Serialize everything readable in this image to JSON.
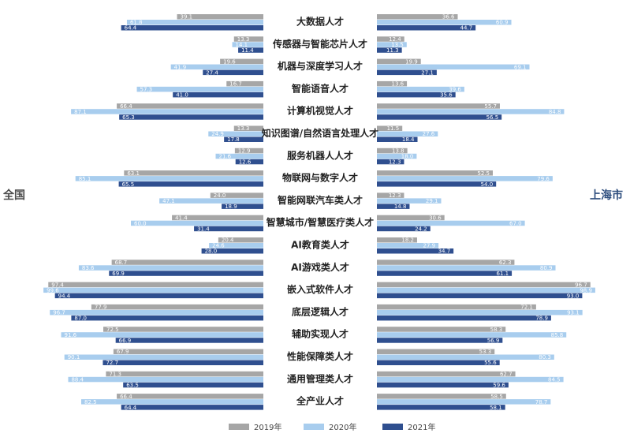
{
  "chart_data": {
    "type": "bar",
    "left_label": "全国",
    "right_label": "上海市",
    "categories": [
      "大数据人才",
      "传感器与智能芯片人才",
      "机器与深度学习人才",
      "智能语音人才",
      "计算机视觉人才",
      "知识图谱/自然语言处理人才",
      "服务机器人人才",
      "物联网与数字人才",
      "智能网联汽车类人才",
      "智慧城市/智慧医疗类人才",
      "AI教育类人才",
      "AI游戏类人才",
      "嵌入式软件人才",
      "底层逻辑人才",
      "辅助实现人才",
      "性能保障类人才",
      "通用管理类人才",
      "全产业人才"
    ],
    "left_series": [
      {
        "name": "2019年",
        "values": [
          39.1,
          13.3,
          19.6,
          16.7,
          66.4,
          13.3,
          12.9,
          63.1,
          24.0,
          41.4,
          20.4,
          68.7,
          97.4,
          77.9,
          72.5,
          67.9,
          71.3,
          66.4
        ]
      },
      {
        "name": "2020年",
        "values": [
          61.8,
          14.1,
          41.9,
          57.3,
          87.1,
          24.9,
          21.6,
          85.1,
          47.1,
          60.0,
          24.6,
          83.6,
          99.6,
          96.7,
          91.6,
          90.1,
          88.4,
          82.5
        ]
      },
      {
        "name": "2021年",
        "values": [
          64.4,
          11.4,
          27.4,
          41.0,
          65.3,
          17.8,
          12.6,
          65.5,
          18.9,
          31.4,
          28.0,
          69.9,
          94.4,
          87.0,
          66.9,
          72.7,
          63.5,
          64.4
        ]
      }
    ],
    "right_series": [
      {
        "name": "2019年",
        "values": [
          36.6,
          12.4,
          19.9,
          13.6,
          55.7,
          11.5,
          13.8,
          52.5,
          12.3,
          30.6,
          18.2,
          62.3,
          96.7,
          72.1,
          58.3,
          53.3,
          62.7,
          58.5
        ]
      },
      {
        "name": "2020年",
        "values": [
          60.9,
          13.5,
          69.1,
          39.6,
          84.8,
          27.6,
          18.0,
          79.6,
          29.1,
          67.0,
          27.9,
          80.9,
          98.9,
          93.1,
          85.8,
          80.3,
          84.5,
          78.7
        ]
      },
      {
        "name": "2021年",
        "values": [
          44.7,
          11.3,
          27.1,
          35.6,
          56.5,
          18.4,
          12.3,
          54.0,
          14.8,
          24.2,
          34.7,
          61.1,
          93.0,
          78.9,
          56.9,
          55.6,
          59.6,
          58.1
        ]
      }
    ],
    "legend": [
      "2019年",
      "2020年",
      "2021年"
    ],
    "legend_position": "bottom",
    "colors": [
      "#a6a6a6",
      "#a8cdee",
      "#2f4f8f"
    ],
    "xlim": [
      0,
      100
    ],
    "grid": false
  }
}
